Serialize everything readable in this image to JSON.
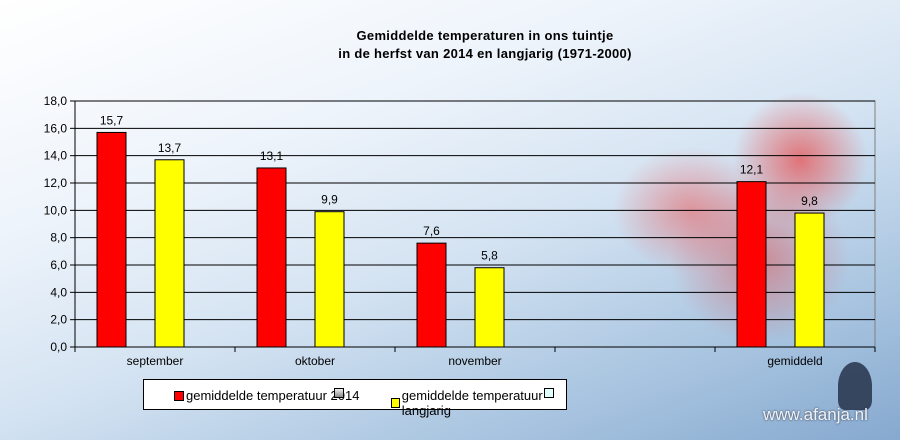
{
  "chart_data": {
    "type": "bar",
    "title": [
      "Gemiddelde temperaturen in ons tuintje",
      "in de herfst van 2014 en langjarig (1971-2000)"
    ],
    "categories": [
      "september",
      "oktober",
      "november",
      "",
      "gemiddeld"
    ],
    "series": [
      {
        "name": "gemiddelde temperatuur 2014",
        "color": "#ff0000",
        "values": [
          15.7,
          13.1,
          7.6,
          null,
          12.1
        ],
        "labels": [
          "15,7",
          "13,1",
          "7,6",
          "",
          "12,1"
        ]
      },
      {
        "name": "gemiddelde temperatuur langjarig",
        "color": "#ffff00",
        "values": [
          13.7,
          9.9,
          5.8,
          null,
          9.8
        ],
        "labels": [
          "13,7",
          "9,9",
          "5,8",
          "",
          "9,8"
        ]
      }
    ],
    "ylim": [
      0,
      18
    ],
    "yticks": [
      "0,0",
      "2,0",
      "4,0",
      "6,0",
      "8,0",
      "10,0",
      "12,0",
      "14,0",
      "16,0",
      "18,0"
    ],
    "grid": true,
    "legend": "bottom",
    "legend_extra_swatches": [
      "#b0b0b0",
      "#e0ffff"
    ]
  },
  "watermark": "www.afanja.nl"
}
